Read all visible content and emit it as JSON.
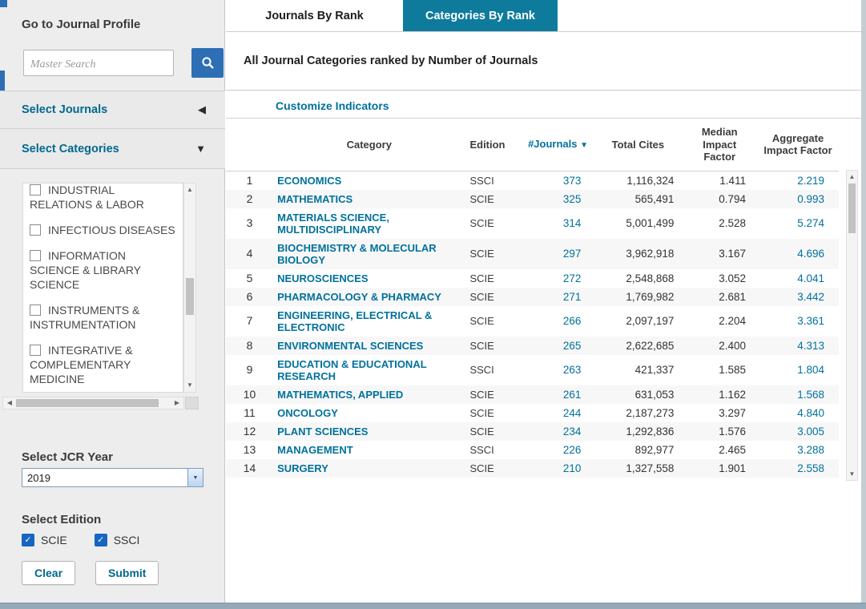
{
  "colors": {
    "accent_teal": "#00719c",
    "tab_active_bg": "#0f7b9c",
    "search_button_blue": "#2d6eb5",
    "checkbox_blue": "#1665c0"
  },
  "icons": {
    "collapsed_triangle": "◀",
    "expanded_triangle": "▼",
    "sort_desc": "▼",
    "arrow_up": "▲",
    "arrow_down": "▼",
    "arrow_left": "◀",
    "arrow_right": "▶",
    "dropdown_arrow": "▼",
    "checkmark": "✓"
  },
  "sidebar": {
    "profile_heading": "Go to Journal Profile",
    "search": {
      "placeholder": "Master Search"
    },
    "select_journals_label": "Select Journals",
    "select_categories_label": "Select Categories",
    "category_checkboxes": [
      "INDUSTRIAL RELATIONS & LABOR",
      "INFECTIOUS DISEASES",
      "INFORMATION SCIENCE & LIBRARY SCIENCE",
      "INSTRUMENTS & INSTRUMENTATION",
      "INTEGRATIVE & COMPLEMENTARY MEDICINE"
    ],
    "jcr_year_heading": "Select JCR Year",
    "jcr_year_value": "2019",
    "edition_heading": "Select Edition",
    "editions": [
      {
        "label": "SCIE",
        "checked": true
      },
      {
        "label": "SSCI",
        "checked": true
      }
    ],
    "clear_label": "Clear",
    "submit_label": "Submit"
  },
  "tabs": [
    {
      "label": "Journals By Rank",
      "active": false
    },
    {
      "label": "Categories By Rank",
      "active": true
    }
  ],
  "main": {
    "title": "All Journal Categories ranked by Number of Journals",
    "customize_link": "Customize Indicators"
  },
  "table": {
    "headers": {
      "category": "Category",
      "edition": "Edition",
      "journals": "#Journals",
      "total_cites": "Total Cites",
      "median_if": "Median Impact Factor",
      "aggregate_if": "Aggregate Impact Factor"
    },
    "rows": [
      {
        "rank": "1",
        "category": "ECONOMICS",
        "edition": "SSCI",
        "journals": "373",
        "total_cites": "1,116,324",
        "median_if": "1.411",
        "aggregate_if": "2.219"
      },
      {
        "rank": "2",
        "category": "MATHEMATICS",
        "edition": "SCIE",
        "journals": "325",
        "total_cites": "565,491",
        "median_if": "0.794",
        "aggregate_if": "0.993"
      },
      {
        "rank": "3",
        "category": "MATERIALS SCIENCE, MULTIDISCIPLINARY",
        "edition": "SCIE",
        "journals": "314",
        "total_cites": "5,001,499",
        "median_if": "2.528",
        "aggregate_if": "5.274"
      },
      {
        "rank": "4",
        "category": "BIOCHEMISTRY & MOLECULAR BIOLOGY",
        "edition": "SCIE",
        "journals": "297",
        "total_cites": "3,962,918",
        "median_if": "3.167",
        "aggregate_if": "4.696"
      },
      {
        "rank": "5",
        "category": "NEUROSCIENCES",
        "edition": "SCIE",
        "journals": "272",
        "total_cites": "2,548,868",
        "median_if": "3.052",
        "aggregate_if": "4.041"
      },
      {
        "rank": "6",
        "category": "PHARMACOLOGY & PHARMACY",
        "edition": "SCIE",
        "journals": "271",
        "total_cites": "1,769,982",
        "median_if": "2.681",
        "aggregate_if": "3.442"
      },
      {
        "rank": "7",
        "category": "ENGINEERING, ELECTRICAL & ELECTRONIC",
        "edition": "SCIE",
        "journals": "266",
        "total_cites": "2,097,197",
        "median_if": "2.204",
        "aggregate_if": "3.361"
      },
      {
        "rank": "8",
        "category": "ENVIRONMENTAL SCIENCES",
        "edition": "SCIE",
        "journals": "265",
        "total_cites": "2,622,685",
        "median_if": "2.400",
        "aggregate_if": "4.313"
      },
      {
        "rank": "9",
        "category": "EDUCATION & EDUCATIONAL RESEARCH",
        "edition": "SSCI",
        "journals": "263",
        "total_cites": "421,337",
        "median_if": "1.585",
        "aggregate_if": "1.804"
      },
      {
        "rank": "10",
        "category": "MATHEMATICS, APPLIED",
        "edition": "SCIE",
        "journals": "261",
        "total_cites": "631,053",
        "median_if": "1.162",
        "aggregate_if": "1.568"
      },
      {
        "rank": "11",
        "category": "ONCOLOGY",
        "edition": "SCIE",
        "journals": "244",
        "total_cites": "2,187,273",
        "median_if": "3.297",
        "aggregate_if": "4.840"
      },
      {
        "rank": "12",
        "category": "PLANT SCIENCES",
        "edition": "SCIE",
        "journals": "234",
        "total_cites": "1,292,836",
        "median_if": "1.576",
        "aggregate_if": "3.005"
      },
      {
        "rank": "13",
        "category": "MANAGEMENT",
        "edition": "SSCI",
        "journals": "226",
        "total_cites": "892,977",
        "median_if": "2.465",
        "aggregate_if": "3.288"
      },
      {
        "rank": "14",
        "category": "SURGERY",
        "edition": "SCIE",
        "journals": "210",
        "total_cites": "1,327,558",
        "median_if": "1.901",
        "aggregate_if": "2.558"
      }
    ]
  }
}
